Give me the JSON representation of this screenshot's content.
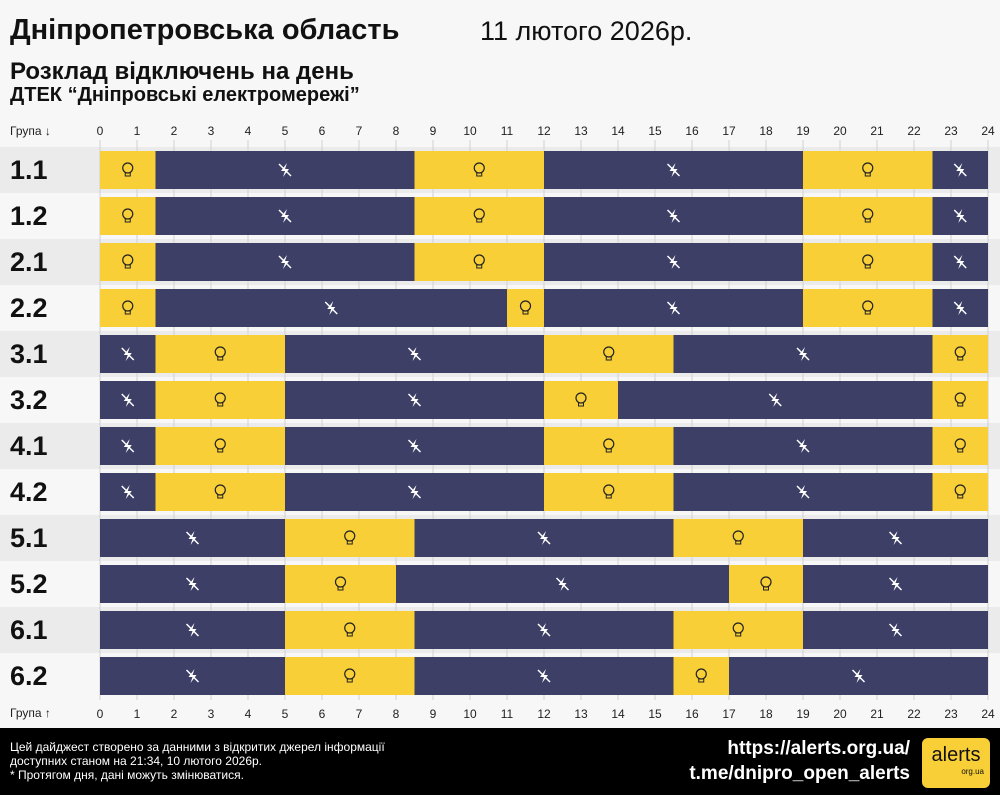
{
  "header": {
    "title": "Дніпропетровська область",
    "date": "11 лютого 2026р.",
    "subtitle": "Розклад відключень на день",
    "provider": "ДТЕК “Дніпровські електромережі”"
  },
  "axis": {
    "top_label": "Група ↓",
    "bottom_label": "Група ↑"
  },
  "colors": {
    "on": "#f8cf36",
    "off": "#3d3f66"
  },
  "icons": {
    "on": "lightbulb-icon",
    "off": "power-off-icon"
  },
  "chart_data": {
    "type": "table",
    "xlim": [
      0,
      24
    ],
    "ticks": [
      "0",
      "1",
      "2",
      "3",
      "4",
      "5",
      "6",
      "7",
      "8",
      "9",
      "10",
      "11",
      "12",
      "13",
      "14",
      "15",
      "16",
      "17",
      "18",
      "19",
      "20",
      "21",
      "22",
      "23",
      "24"
    ],
    "legend": {
      "on": "power available",
      "off": "outage"
    },
    "groups": [
      {
        "name": "1.1",
        "segments": [
          [
            "on",
            0,
            1.5
          ],
          [
            "off",
            1.5,
            8.5
          ],
          [
            "on",
            8.5,
            12
          ],
          [
            "off",
            12,
            19
          ],
          [
            "on",
            19,
            22.5
          ],
          [
            "off",
            22.5,
            24
          ]
        ]
      },
      {
        "name": "1.2",
        "segments": [
          [
            "on",
            0,
            1.5
          ],
          [
            "off",
            1.5,
            8.5
          ],
          [
            "on",
            8.5,
            12
          ],
          [
            "off",
            12,
            19
          ],
          [
            "on",
            19,
            22.5
          ],
          [
            "off",
            22.5,
            24
          ]
        ]
      },
      {
        "name": "2.1",
        "segments": [
          [
            "on",
            0,
            1.5
          ],
          [
            "off",
            1.5,
            8.5
          ],
          [
            "on",
            8.5,
            12
          ],
          [
            "off",
            12,
            19
          ],
          [
            "on",
            19,
            22.5
          ],
          [
            "off",
            22.5,
            24
          ]
        ]
      },
      {
        "name": "2.2",
        "segments": [
          [
            "on",
            0,
            1.5
          ],
          [
            "off",
            1.5,
            11
          ],
          [
            "on",
            11,
            12
          ],
          [
            "off",
            12,
            19
          ],
          [
            "on",
            19,
            22.5
          ],
          [
            "off",
            22.5,
            24
          ]
        ]
      },
      {
        "name": "3.1",
        "segments": [
          [
            "off",
            0,
            1.5
          ],
          [
            "on",
            1.5,
            5
          ],
          [
            "off",
            5,
            12
          ],
          [
            "on",
            12,
            15.5
          ],
          [
            "off",
            15.5,
            22.5
          ],
          [
            "on",
            22.5,
            24
          ]
        ]
      },
      {
        "name": "3.2",
        "segments": [
          [
            "off",
            0,
            1.5
          ],
          [
            "on",
            1.5,
            5
          ],
          [
            "off",
            5,
            12
          ],
          [
            "on",
            12,
            14
          ],
          [
            "off",
            14,
            22.5
          ],
          [
            "on",
            22.5,
            24
          ]
        ]
      },
      {
        "name": "4.1",
        "segments": [
          [
            "off",
            0,
            1.5
          ],
          [
            "on",
            1.5,
            5
          ],
          [
            "off",
            5,
            12
          ],
          [
            "on",
            12,
            15.5
          ],
          [
            "off",
            15.5,
            22.5
          ],
          [
            "on",
            22.5,
            24
          ]
        ]
      },
      {
        "name": "4.2",
        "segments": [
          [
            "off",
            0,
            1.5
          ],
          [
            "on",
            1.5,
            5
          ],
          [
            "off",
            5,
            12
          ],
          [
            "on",
            12,
            15.5
          ],
          [
            "off",
            15.5,
            22.5
          ],
          [
            "on",
            22.5,
            24
          ]
        ]
      },
      {
        "name": "5.1",
        "segments": [
          [
            "off",
            0,
            5
          ],
          [
            "on",
            5,
            8.5
          ],
          [
            "off",
            8.5,
            15.5
          ],
          [
            "on",
            15.5,
            19
          ],
          [
            "off",
            19,
            24
          ]
        ]
      },
      {
        "name": "5.2",
        "segments": [
          [
            "off",
            0,
            5
          ],
          [
            "on",
            5,
            8
          ],
          [
            "off",
            8,
            17
          ],
          [
            "on",
            17,
            19
          ],
          [
            "off",
            19,
            24
          ]
        ]
      },
      {
        "name": "6.1",
        "segments": [
          [
            "off",
            0,
            5
          ],
          [
            "on",
            5,
            8.5
          ],
          [
            "off",
            8.5,
            15.5
          ],
          [
            "on",
            15.5,
            19
          ],
          [
            "off",
            19,
            24
          ]
        ]
      },
      {
        "name": "6.2",
        "segments": [
          [
            "off",
            0,
            5
          ],
          [
            "on",
            5,
            8.5
          ],
          [
            "off",
            8.5,
            15.5
          ],
          [
            "on",
            15.5,
            17
          ],
          [
            "off",
            17,
            24
          ]
        ]
      }
    ]
  },
  "footer": {
    "line1": "Цей дайджест створено за данними з відкритих джерел інформації",
    "line2": "доступних станом на 21:34, 10 лютого 2026р.",
    "line3": "* Протягом дня, дані можуть змінюватися.",
    "link1": "https://alerts.org.ua/",
    "link2": "t.me/dnipro_open_alerts",
    "logo": "alerts",
    "logo_sub": "org.ua"
  }
}
